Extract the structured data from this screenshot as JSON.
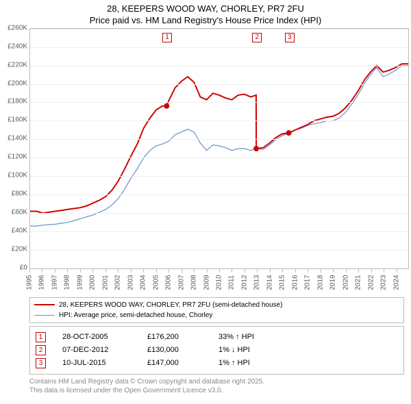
{
  "chart": {
    "title_line1": "28, KEEPERS WOOD WAY, CHORLEY, PR7 2FU",
    "title_line2": "Price paid vs. HM Land Registry's House Price Index (HPI)",
    "ylim": [
      0,
      260000
    ],
    "ytick_step": 20000,
    "yticks_labels": [
      "£0",
      "£20K",
      "£40K",
      "£60K",
      "£80K",
      "£100K",
      "£120K",
      "£140K",
      "£160K",
      "£180K",
      "£200K",
      "£220K",
      "£240K",
      "£260K"
    ],
    "x_years": [
      1995,
      1996,
      1997,
      1998,
      1999,
      2000,
      2001,
      2002,
      2003,
      2004,
      2005,
      2006,
      2007,
      2008,
      2009,
      2010,
      2011,
      2012,
      2013,
      2014,
      2015,
      2016,
      2017,
      2018,
      2019,
      2020,
      2021,
      2022,
      2023,
      2024
    ],
    "x_domain": [
      1995,
      2025
    ],
    "colors": {
      "series_red": "#d10000",
      "series_blue": "#6a8fc9",
      "grid": "#eeeeee",
      "axis": "#bbbbbb",
      "text": "#000000",
      "ylabel_text": "#5a5a5a",
      "marker_border": "#c00000",
      "background": "#ffffff"
    },
    "line_width_red": 2,
    "line_width_blue": 1.2,
    "series_red_points": [
      [
        1995,
        62000
      ],
      [
        1995.5,
        62000
      ],
      [
        1996,
        60000
      ],
      [
        1996.5,
        61000
      ],
      [
        1997,
        62000
      ],
      [
        1997.5,
        63000
      ],
      [
        1998,
        64000
      ],
      [
        1998.5,
        65000
      ],
      [
        1999,
        66000
      ],
      [
        1999.5,
        68000
      ],
      [
        2000,
        71000
      ],
      [
        2000.5,
        74000
      ],
      [
        2001,
        78000
      ],
      [
        2001.5,
        85000
      ],
      [
        2002,
        95000
      ],
      [
        2002.5,
        108000
      ],
      [
        2003,
        122000
      ],
      [
        2003.5,
        135000
      ],
      [
        2004,
        152000
      ],
      [
        2004.5,
        163000
      ],
      [
        2005,
        172000
      ],
      [
        2005.5,
        176200
      ],
      [
        2005.83,
        176200
      ],
      [
        2006,
        182000
      ],
      [
        2006.5,
        196000
      ],
      [
        2007,
        203000
      ],
      [
        2007.5,
        208000
      ],
      [
        2008,
        202000
      ],
      [
        2008.5,
        186000
      ],
      [
        2009,
        183000
      ],
      [
        2009.5,
        190000
      ],
      [
        2010,
        188000
      ],
      [
        2010.5,
        185000
      ],
      [
        2011,
        183000
      ],
      [
        2011.5,
        188000
      ],
      [
        2012,
        189000
      ],
      [
        2012.5,
        186000
      ],
      [
        2012.93,
        188000
      ],
      [
        2012.94,
        130000
      ],
      [
        2013,
        130000
      ],
      [
        2013.5,
        131000
      ],
      [
        2014,
        136000
      ],
      [
        2014.5,
        142000
      ],
      [
        2015,
        146000
      ],
      [
        2015.5,
        147000
      ],
      [
        2015.52,
        147000
      ],
      [
        2016,
        150000
      ],
      [
        2016.5,
        153000
      ],
      [
        2017,
        156000
      ],
      [
        2017.5,
        160000
      ],
      [
        2018,
        162000
      ],
      [
        2018.5,
        164000
      ],
      [
        2019,
        165000
      ],
      [
        2019.5,
        168000
      ],
      [
        2020,
        174000
      ],
      [
        2020.5,
        182000
      ],
      [
        2021,
        192000
      ],
      [
        2021.5,
        204000
      ],
      [
        2022,
        213000
      ],
      [
        2022.5,
        220000
      ],
      [
        2023,
        213000
      ],
      [
        2023.5,
        215000
      ],
      [
        2024,
        218000
      ],
      [
        2024.5,
        222000
      ],
      [
        2025,
        222000
      ]
    ],
    "series_blue_points": [
      [
        1995,
        46000
      ],
      [
        1995.5,
        46000
      ],
      [
        1996,
        47000
      ],
      [
        1996.5,
        47500
      ],
      [
        1997,
        48000
      ],
      [
        1997.5,
        49000
      ],
      [
        1998,
        50000
      ],
      [
        1998.5,
        52000
      ],
      [
        1999,
        54000
      ],
      [
        1999.5,
        56000
      ],
      [
        2000,
        58000
      ],
      [
        2000.5,
        61000
      ],
      [
        2001,
        64000
      ],
      [
        2001.5,
        69000
      ],
      [
        2002,
        76000
      ],
      [
        2002.5,
        86000
      ],
      [
        2003,
        98000
      ],
      [
        2003.5,
        108000
      ],
      [
        2004,
        120000
      ],
      [
        2004.5,
        128000
      ],
      [
        2005,
        133000
      ],
      [
        2005.5,
        135000
      ],
      [
        2006,
        138000
      ],
      [
        2006.5,
        145000
      ],
      [
        2007,
        148000
      ],
      [
        2007.5,
        151000
      ],
      [
        2008,
        148000
      ],
      [
        2008.5,
        136000
      ],
      [
        2009,
        128000
      ],
      [
        2009.5,
        134000
      ],
      [
        2010,
        133000
      ],
      [
        2010.5,
        131000
      ],
      [
        2011,
        128000
      ],
      [
        2011.5,
        130000
      ],
      [
        2012,
        130000
      ],
      [
        2012.5,
        128000
      ],
      [
        2012.93,
        130000
      ],
      [
        2013,
        130000
      ],
      [
        2013.5,
        129000
      ],
      [
        2014,
        134000
      ],
      [
        2014.5,
        140000
      ],
      [
        2015,
        144000
      ],
      [
        2015.5,
        147000
      ],
      [
        2016,
        150000
      ],
      [
        2016.5,
        152000
      ],
      [
        2017,
        155000
      ],
      [
        2017.5,
        157000
      ],
      [
        2018,
        158000
      ],
      [
        2018.5,
        160000
      ],
      [
        2019,
        160000
      ],
      [
        2019.5,
        163000
      ],
      [
        2020,
        169000
      ],
      [
        2020.5,
        178000
      ],
      [
        2021,
        188000
      ],
      [
        2021.5,
        200000
      ],
      [
        2022,
        210000
      ],
      [
        2022.5,
        218000
      ],
      [
        2023,
        208000
      ],
      [
        2023.5,
        211000
      ],
      [
        2024,
        215000
      ],
      [
        2024.5,
        220000
      ],
      [
        2025,
        220000
      ]
    ],
    "sale_markers": [
      {
        "num": "1",
        "x": 2005.83,
        "y": 176200
      },
      {
        "num": "2",
        "x": 2012.94,
        "y": 130000
      },
      {
        "num": "3",
        "x": 2015.52,
        "y": 147000
      }
    ],
    "legend": [
      {
        "color": "#d10000",
        "label": "28, KEEPERS WOOD WAY, CHORLEY, PR7 2FU (semi-detached house)",
        "width": 2
      },
      {
        "color": "#6a8fc9",
        "label": "HPI: Average price, semi-detached house, Chorley",
        "width": 1.2
      }
    ],
    "events": [
      {
        "num": "1",
        "date": "28-OCT-2005",
        "price": "£176,200",
        "hpi": "33% ↑ HPI"
      },
      {
        "num": "2",
        "date": "07-DEC-2012",
        "price": "£130,000",
        "hpi": "1% ↓ HPI"
      },
      {
        "num": "3",
        "date": "10-JUL-2015",
        "price": "£147,000",
        "hpi": "1% ↑ HPI"
      }
    ],
    "footnote_l1": "Contains HM Land Registry data © Crown copyright and database right 2025.",
    "footnote_l2": "This data is licensed under the Open Government Licence v3.0."
  }
}
